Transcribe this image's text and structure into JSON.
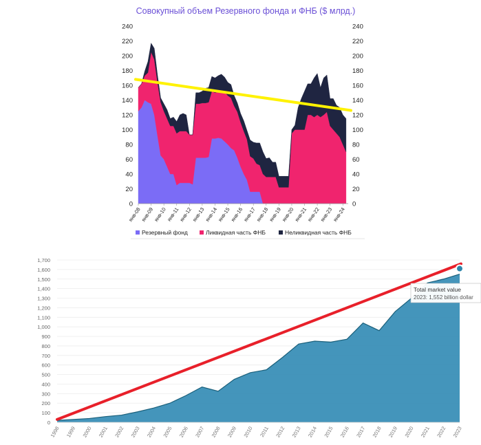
{
  "chart_data": [
    {
      "type": "area",
      "stacked": true,
      "title": "Совокупный объем Резервного фонда и ФНБ ($ млрд.)",
      "ylim": [
        0,
        240
      ],
      "yticks": [
        0,
        20,
        40,
        60,
        80,
        100,
        120,
        140,
        160,
        180,
        200,
        220,
        240
      ],
      "secondary_yticks": [
        0,
        20,
        40,
        60,
        80,
        100,
        120,
        140,
        160,
        180,
        200,
        220,
        240
      ],
      "xlim": [
        "2008-01",
        "2024-06"
      ],
      "x_tick_labels": [
        "янв-08",
        "янв-09",
        "янв-10",
        "янв-11",
        "янв-12",
        "янв-13",
        "янв-14",
        "янв-15",
        "янв-16",
        "янв-17",
        "янв-18",
        "янв-19",
        "янв-20",
        "янв-21",
        "янв-22",
        "янв-23",
        "янв-24"
      ],
      "legend": {
        "placement": "bottom",
        "items": [
          "Резервный фонд",
          "Ликвидная часть ФНБ",
          "Неликвидная часть ФНБ"
        ]
      },
      "colors": {
        "reserve": "#7b6cf6",
        "liquid": "#f0246e",
        "illiquid": "#1f2541",
        "trend": "#fff200"
      },
      "x": [
        "2008-01",
        "2008-04",
        "2008-07",
        "2008-10",
        "2009-01",
        "2009-04",
        "2009-07",
        "2009-10",
        "2010-01",
        "2010-04",
        "2010-07",
        "2010-10",
        "2011-01",
        "2011-04",
        "2011-07",
        "2011-10",
        "2012-01",
        "2012-04",
        "2012-07",
        "2012-10",
        "2013-01",
        "2013-04",
        "2013-07",
        "2013-10",
        "2014-01",
        "2014-04",
        "2014-07",
        "2014-10",
        "2015-01",
        "2015-04",
        "2015-07",
        "2015-10",
        "2016-01",
        "2016-04",
        "2016-07",
        "2016-10",
        "2017-01",
        "2017-04",
        "2017-07",
        "2017-10",
        "2018-01",
        "2018-04",
        "2018-07",
        "2018-10",
        "2019-01",
        "2019-04",
        "2019-07",
        "2019-10",
        "2020-01",
        "2020-04",
        "2020-07",
        "2020-10",
        "2021-01",
        "2021-04",
        "2021-07",
        "2021-10",
        "2022-01",
        "2022-04",
        "2022-07",
        "2022-10",
        "2023-01",
        "2023-04",
        "2023-07",
        "2023-10",
        "2024-01",
        "2024-04"
      ],
      "series": [
        {
          "name": "Резервный фонд",
          "values": [
            125,
            130,
            140,
            137,
            135,
            120,
            92,
            65,
            60,
            50,
            40,
            40,
            25,
            28,
            28,
            28,
            28,
            26,
            62,
            62,
            62,
            62,
            63,
            88,
            88,
            89,
            88,
            84,
            80,
            75,
            72,
            62,
            50,
            40,
            32,
            16,
            16,
            16,
            16,
            0,
            0,
            0,
            0,
            0,
            0,
            0,
            0,
            0,
            0,
            0,
            0,
            0,
            0,
            0,
            0,
            0,
            0,
            0,
            0,
            0,
            0,
            0,
            0,
            0,
            0,
            0
          ]
        },
        {
          "name": "Ликвидная часть ФНБ",
          "values": [
            32,
            32,
            33,
            40,
            70,
            75,
            72,
            72,
            65,
            65,
            65,
            65,
            70,
            70,
            70,
            70,
            65,
            67,
            73,
            73,
            74,
            74,
            74,
            64,
            62,
            62,
            65,
            67,
            66,
            68,
            60,
            62,
            60,
            58,
            55,
            48,
            45,
            38,
            36,
            40,
            36,
            36,
            36,
            36,
            22,
            22,
            22,
            22,
            95,
            100,
            100,
            100,
            100,
            120,
            120,
            117,
            120,
            117,
            120,
            124,
            105,
            100,
            95,
            90,
            80,
            70
          ]
        },
        {
          "name": "Неликвидная часть ФНБ",
          "values": [
            0,
            0,
            6,
            15,
            12,
            15,
            10,
            6,
            10,
            12,
            10,
            12,
            16,
            22,
            24,
            22,
            0,
            0,
            15,
            15,
            16,
            20,
            20,
            20,
            20,
            22,
            22,
            20,
            18,
            18,
            14,
            12,
            12,
            14,
            12,
            22,
            22,
            28,
            30,
            30,
            25,
            26,
            20,
            20,
            15,
            15,
            15,
            15,
            5,
            6,
            30,
            42,
            52,
            42,
            42,
            53,
            56,
            40,
            50,
            50,
            37,
            42,
            38,
            40,
            40,
            45
          ]
        }
      ],
      "trend_line": {
        "x": [
          "2008-01",
          "2024-06"
        ],
        "y": [
          168,
          126
        ]
      }
    },
    {
      "type": "area",
      "series": [
        {
          "name": "Total market value",
          "values": [
            20,
            30,
            40,
            60,
            75,
            110,
            150,
            200,
            280,
            370,
            325,
            450,
            520,
            550,
            680,
            820,
            850,
            840,
            870,
            1040,
            960,
            1160,
            1300,
            1460,
            1500,
            1552
          ]
        }
      ],
      "categories": [
        "1998",
        "1999",
        "2000",
        "2001",
        "2002",
        "2003",
        "2004",
        "2005",
        "2006",
        "2007",
        "2008",
        "2009",
        "2010",
        "2011",
        "2012",
        "2013",
        "2014",
        "2015",
        "2016",
        "2017",
        "2018",
        "2019",
        "2020",
        "2021",
        "2022",
        "2023"
      ],
      "ylim": [
        0,
        1700
      ],
      "yticks": [
        "0",
        "100",
        "200",
        "300",
        "400",
        "500",
        "600",
        "700",
        "800",
        "900",
        "1,000",
        "1,100",
        "1,200",
        "1,300",
        "1,400",
        "1,500",
        "1,600",
        "1,700"
      ],
      "colors": {
        "area": "#2e86ab",
        "line": "#1a5f7a",
        "trend": "#e8202a"
      },
      "tooltip": {
        "title": "Total market value",
        "text": "2023: 1,552 billion dollar"
      },
      "trend_line": {
        "x": [
          "1998",
          "2023"
        ],
        "y": [
          30,
          1660
        ]
      }
    }
  ]
}
